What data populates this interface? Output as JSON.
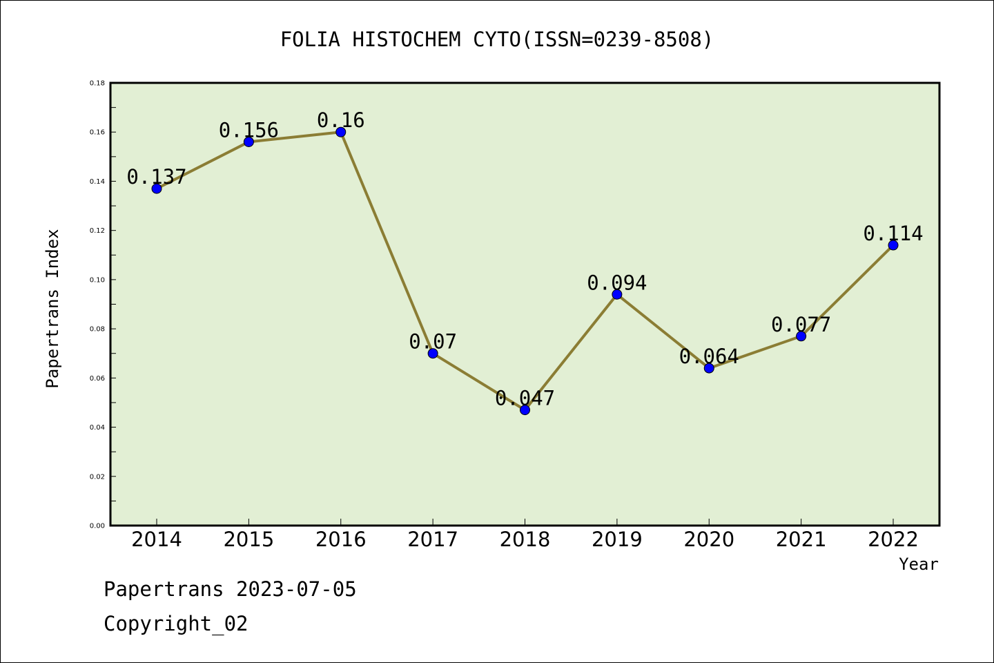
{
  "chart_data": {
    "type": "line",
    "title": "FOLIA HISTOCHEM CYTO(ISSN=0239-8508)",
    "xlabel": "Year",
    "ylabel": "Papertrans Index",
    "categories": [
      "2014",
      "2015",
      "2016",
      "2017",
      "2018",
      "2019",
      "2020",
      "2021",
      "2022"
    ],
    "values": [
      0.137,
      0.156,
      0.16,
      0.07,
      0.047,
      0.094,
      0.064,
      0.077,
      0.114
    ],
    "data_labels": [
      "0.137",
      "0.156",
      "0.16",
      "0.07",
      "0.047",
      "0.094",
      "0.064",
      "0.077",
      "0.114"
    ],
    "ylim": [
      0,
      0.18
    ],
    "yticks": [
      "0.00",
      "0.02",
      "0.04",
      "0.06",
      "0.08",
      "0.10",
      "0.12",
      "0.14",
      "0.16",
      "0.18"
    ],
    "grid": false,
    "colors": {
      "plot_background": "#e2efd4",
      "line": "#8b7d34",
      "marker": "#0000ff"
    }
  },
  "footer": {
    "line1": "Papertrans 2023-07-05",
    "line2": "Copyright_02"
  }
}
